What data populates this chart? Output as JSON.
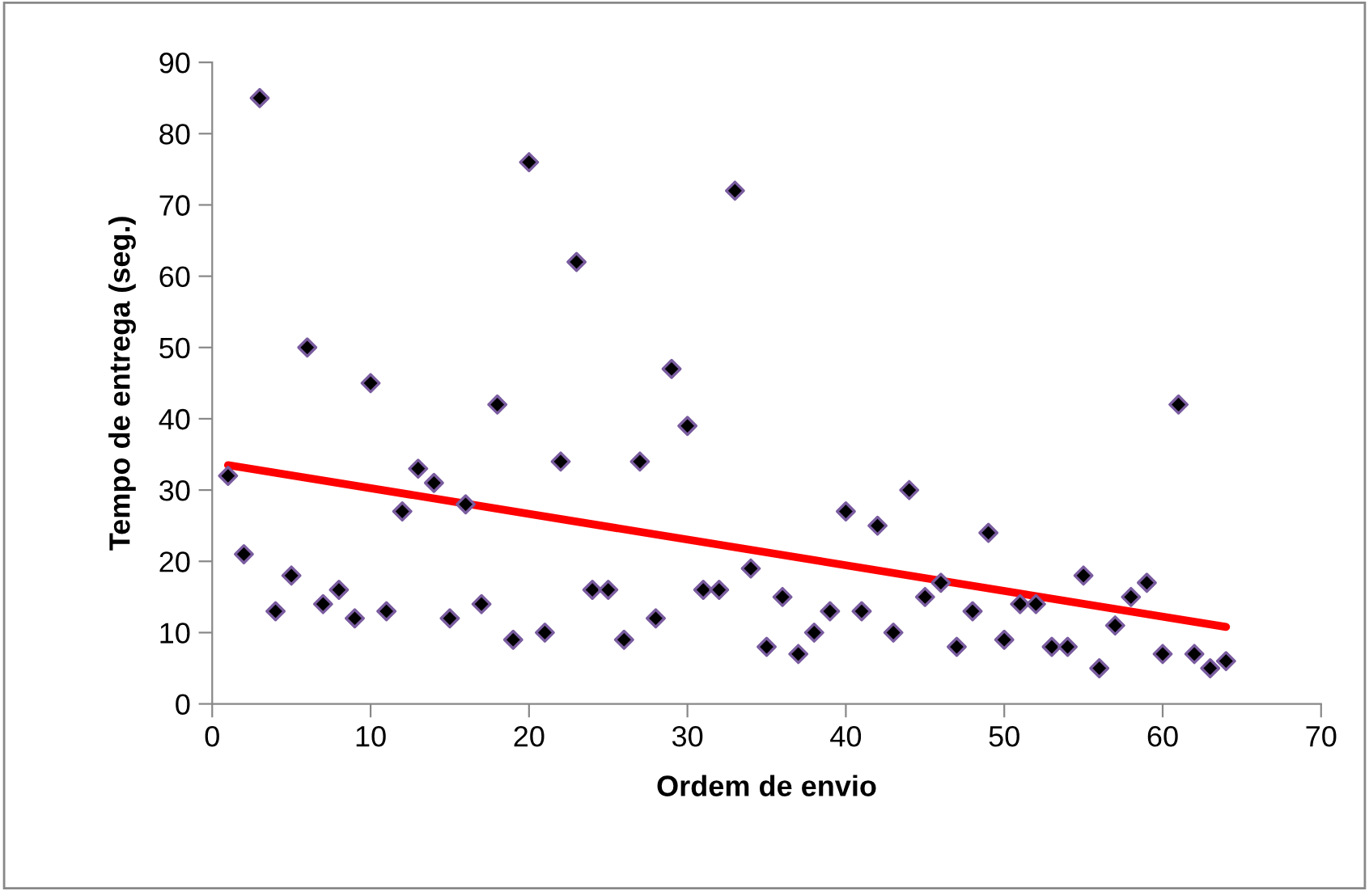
{
  "chart_data": {
    "type": "scatter",
    "xlabel": "Ordem de envio",
    "ylabel": "Tempo de entrega (seg.)",
    "xlim": [
      0,
      70
    ],
    "xticks": [
      0,
      10,
      20,
      30,
      40,
      50,
      60,
      70
    ],
    "ylim": [
      0,
      90
    ],
    "yticks": [
      0,
      10,
      20,
      30,
      40,
      50,
      60,
      70,
      80,
      90
    ],
    "grid": false,
    "legend": false,
    "series": [
      {
        "marker": "diamond",
        "color": "#000000",
        "x": [
          1,
          2,
          3,
          4,
          5,
          6,
          7,
          8,
          9,
          10,
          11,
          12,
          13,
          14,
          15,
          16,
          17,
          18,
          19,
          20,
          21,
          22,
          23,
          24,
          25,
          26,
          27,
          28,
          29,
          30,
          31,
          32,
          33,
          34,
          35,
          36,
          37,
          38,
          39,
          40,
          41,
          42,
          43,
          44,
          45,
          46,
          47,
          48,
          49,
          50,
          51,
          52,
          53,
          54,
          55,
          56,
          57,
          58,
          59,
          60,
          61,
          62,
          63,
          64
        ],
        "values": [
          32,
          21,
          85,
          13,
          18,
          50,
          14,
          16,
          12,
          45,
          13,
          27,
          33,
          31,
          12,
          28,
          14,
          42,
          9,
          76,
          10,
          34,
          62,
          16,
          16,
          9,
          34,
          12,
          47,
          39,
          16,
          16,
          72,
          19,
          8,
          15,
          7,
          10,
          13,
          27,
          13,
          25,
          10,
          30,
          15,
          17,
          8,
          13,
          24,
          9,
          14,
          14,
          8,
          8,
          18,
          5,
          11,
          15,
          17,
          7,
          42,
          7,
          5,
          6
        ]
      },
      {
        "type": "line",
        "marker": "none",
        "color": "#ff0000",
        "x": [
          1,
          64
        ],
        "values": [
          33.5,
          10.8
        ]
      }
    ]
  }
}
